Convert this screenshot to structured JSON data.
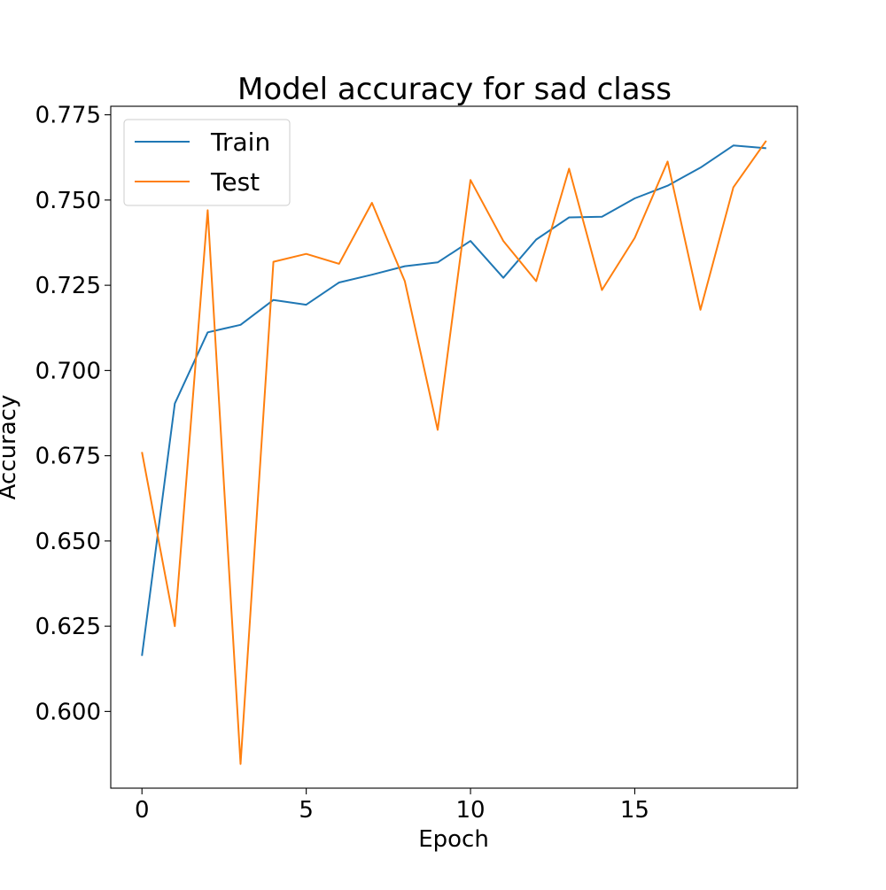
{
  "chart_data": {
    "type": "line",
    "title": "Model accuracy for sad class",
    "xlabel": "Epoch",
    "ylabel": "Accuracy",
    "xlim": [
      -0.95,
      19.95
    ],
    "ylim": [
      0.5775,
      0.7775
    ],
    "x_ticks": [
      0,
      5,
      10,
      15
    ],
    "x_tick_labels": [
      "0",
      "5",
      "10",
      "15"
    ],
    "y_ticks": [
      0.6,
      0.625,
      0.65,
      0.675,
      0.7,
      0.725,
      0.75,
      0.775
    ],
    "y_tick_labels": [
      "0.600",
      "0.625",
      "0.650",
      "0.675",
      "0.700",
      "0.725",
      "0.750",
      "0.775"
    ],
    "grid": false,
    "legend_position": "upper-left",
    "x": [
      0,
      1,
      2,
      3,
      4,
      5,
      6,
      7,
      8,
      9,
      10,
      11,
      12,
      13,
      14,
      15,
      16,
      17,
      18,
      19
    ],
    "series": [
      {
        "name": "Train",
        "color": "#1f77b4",
        "values": [
          0.6163,
          0.6903,
          0.7112,
          0.7134,
          0.7207,
          0.7193,
          0.7258,
          0.7281,
          0.7306,
          0.7317,
          0.738,
          0.7272,
          0.7384,
          0.7449,
          0.7451,
          0.7505,
          0.7542,
          0.7595,
          0.766,
          0.7652
        ]
      },
      {
        "name": "Test",
        "color": "#ff7f0e",
        "values": [
          0.6761,
          0.625,
          0.747,
          0.5846,
          0.7319,
          0.7342,
          0.7313,
          0.7492,
          0.7262,
          0.6826,
          0.7559,
          0.738,
          0.7262,
          0.7592,
          0.7236,
          0.7389,
          0.7613,
          0.7178,
          0.7537,
          0.7674
        ]
      }
    ]
  }
}
